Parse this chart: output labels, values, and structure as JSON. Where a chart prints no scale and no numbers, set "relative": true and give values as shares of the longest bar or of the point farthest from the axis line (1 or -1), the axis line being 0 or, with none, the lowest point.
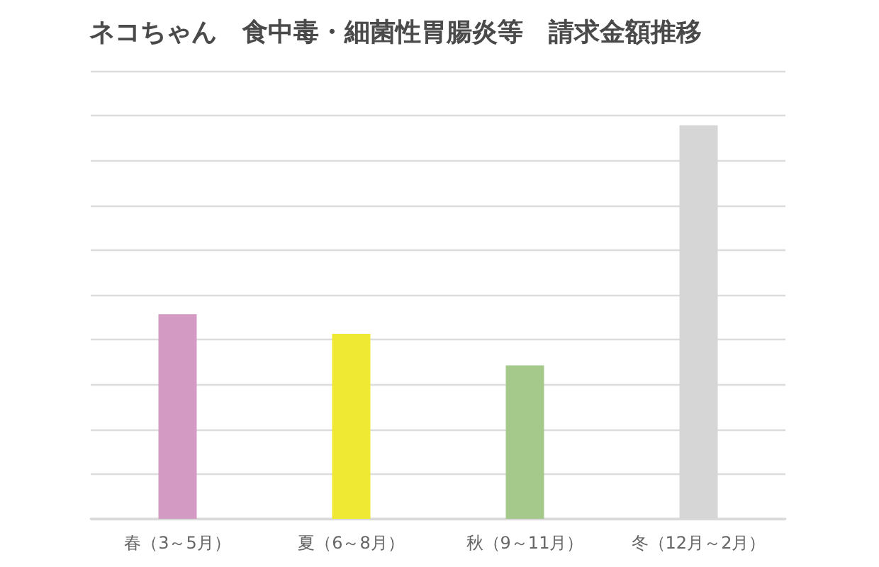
{
  "chart_data": {
    "type": "bar",
    "title": "ネコちゃん　食中毒・細菌性胃腸炎等　請求金額推移",
    "categories": [
      "春（3～5月）",
      "夏（6～8月）",
      "秋（9～11月）",
      "冬（12月～2月）"
    ],
    "values": [
      0.52,
      0.47,
      0.39,
      1
    ],
    "colors": [
      "#d39bc3",
      "#efe934",
      "#a4c98b",
      "#d6d6d6"
    ],
    "relative": true,
    "grid": "y"
  }
}
